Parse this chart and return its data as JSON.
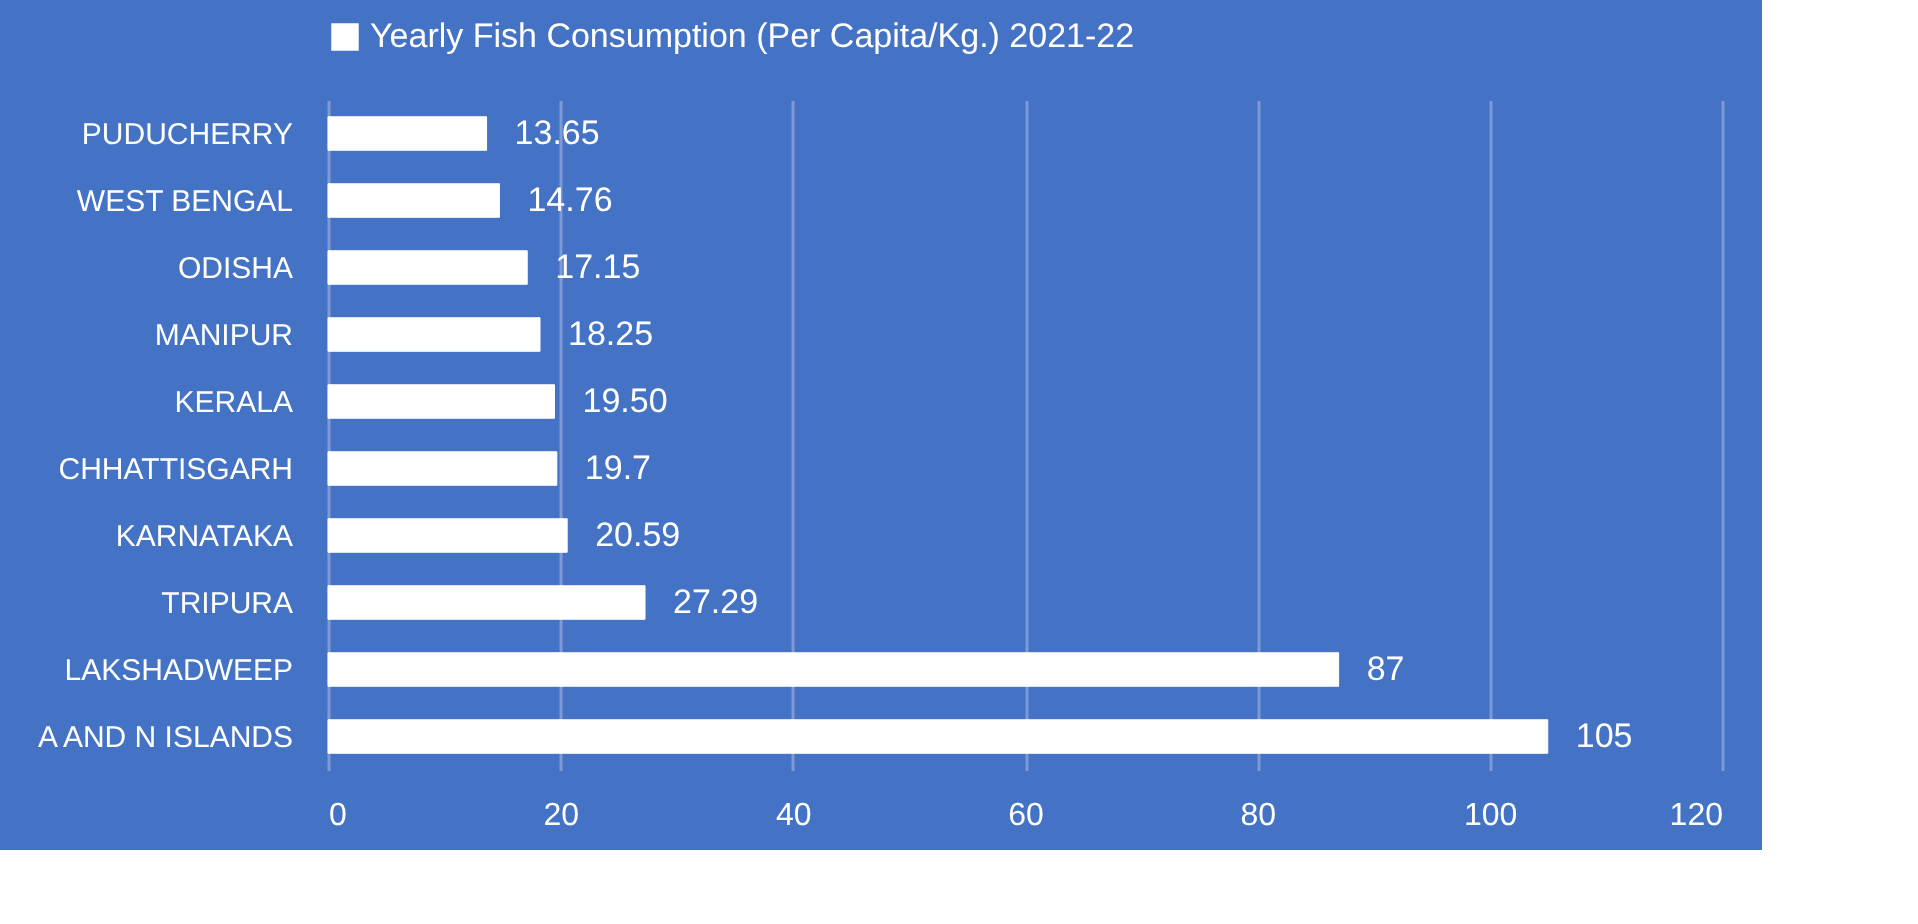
{
  "chart_data": {
    "type": "bar",
    "orientation": "horizontal",
    "categories": [
      "PUDUCHERRY",
      "WEST BENGAL",
      "ODISHA",
      "MANIPUR",
      "KERALA",
      "CHHATTISGARH",
      "KARNATAKA",
      "TRIPURA",
      "LAKSHADWEEP",
      "A AND N ISLANDS"
    ],
    "series": [
      {
        "name": "Yearly Fish Consumption (Per Capita/Kg.) 2021-22",
        "color": "#ffffff",
        "values": [
          13.65,
          14.76,
          17.15,
          18.25,
          19.5,
          19.7,
          20.59,
          27.29,
          87,
          105
        ],
        "value_labels": [
          "13.65",
          "14.76",
          "17.15",
          "18.25",
          "19.50",
          "19.7",
          "20.59",
          "27.29",
          "87",
          "105"
        ]
      }
    ],
    "xlim": [
      0,
      120
    ],
    "xticks": [
      0,
      20,
      40,
      60,
      80,
      100,
      120
    ],
    "grid": "x",
    "legend": "top"
  }
}
